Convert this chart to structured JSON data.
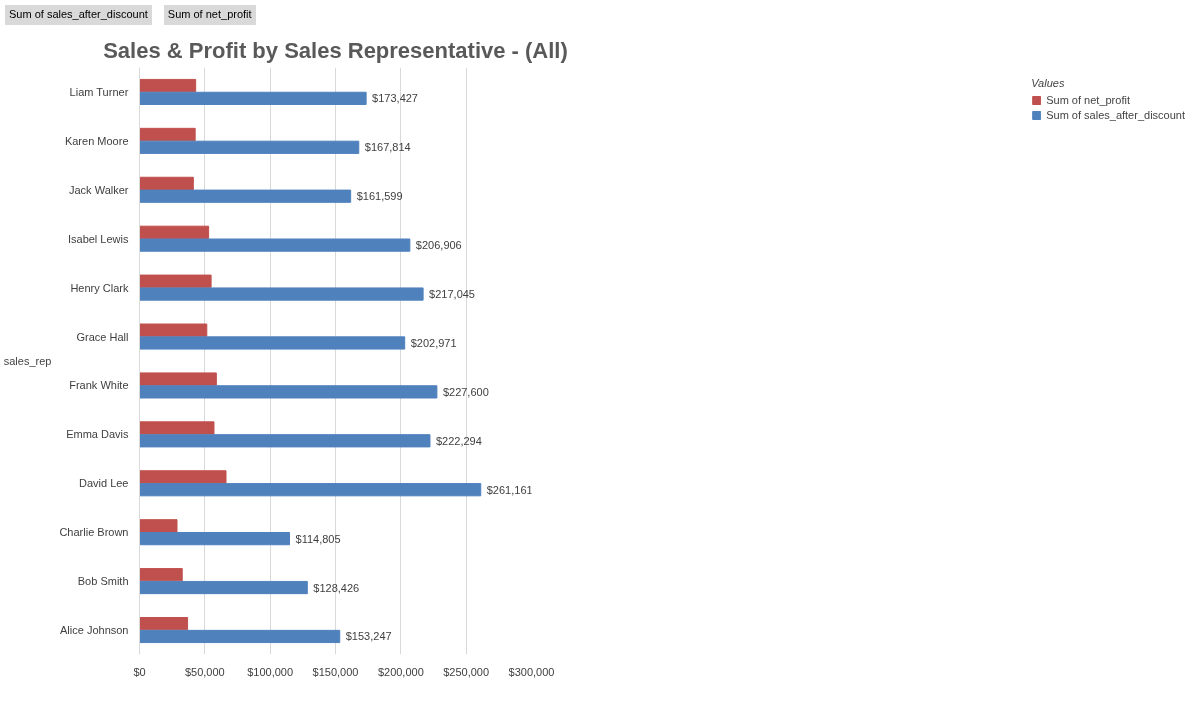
{
  "chart_data": {
    "type": "bar",
    "orientation": "horizontal",
    "title": "Sales & Profit by Sales Representative - (All)",
    "ylabel": "sales_rep",
    "legend_title": "Values",
    "annotations": [
      "Sum of sales_after_discount",
      "Sum of net_profit"
    ],
    "categories": [
      "Liam Turner",
      "Karen Moore",
      "Jack Walker",
      "Isabel Lewis",
      "Henry Clark",
      "Grace Hall",
      "Frank White",
      "Emma Davis",
      "David Lee",
      "Charlie Brown",
      "Bob Smith",
      "Alice Johnson"
    ],
    "series": [
      {
        "name": "Sum of net_profit",
        "color": "#c0504d",
        "values": [
          43000,
          42600,
          41200,
          52900,
          54800,
          51500,
          58800,
          57000,
          66200,
          28700,
          32700,
          36800
        ]
      },
      {
        "name": "Sum of sales_after_discount",
        "color": "#4f81bd",
        "values": [
          173427,
          167814,
          161599,
          206906,
          217045,
          202971,
          227600,
          222294,
          261161,
          114805,
          128426,
          153247
        ],
        "value_labels": [
          "$173,427",
          "$167,814",
          "$161,599",
          "$206,906",
          "$217,045",
          "$202,971",
          "$227,600",
          "$222,294",
          "$261,161",
          "$114,805",
          "$128,426",
          "$153,247"
        ]
      }
    ],
    "xlim": [
      0,
      300000
    ],
    "xticks": [
      {
        "value": 0,
        "label": "$0"
      },
      {
        "value": 50000,
        "label": "$50,000"
      },
      {
        "value": 100000,
        "label": "$100,000"
      },
      {
        "value": 150000,
        "label": "$150,000"
      },
      {
        "value": 200000,
        "label": "$200,000"
      },
      {
        "value": 250000,
        "label": "$250,000"
      },
      {
        "value": 300000,
        "label": "$300,000"
      }
    ],
    "grid": "x",
    "legend": "right"
  }
}
